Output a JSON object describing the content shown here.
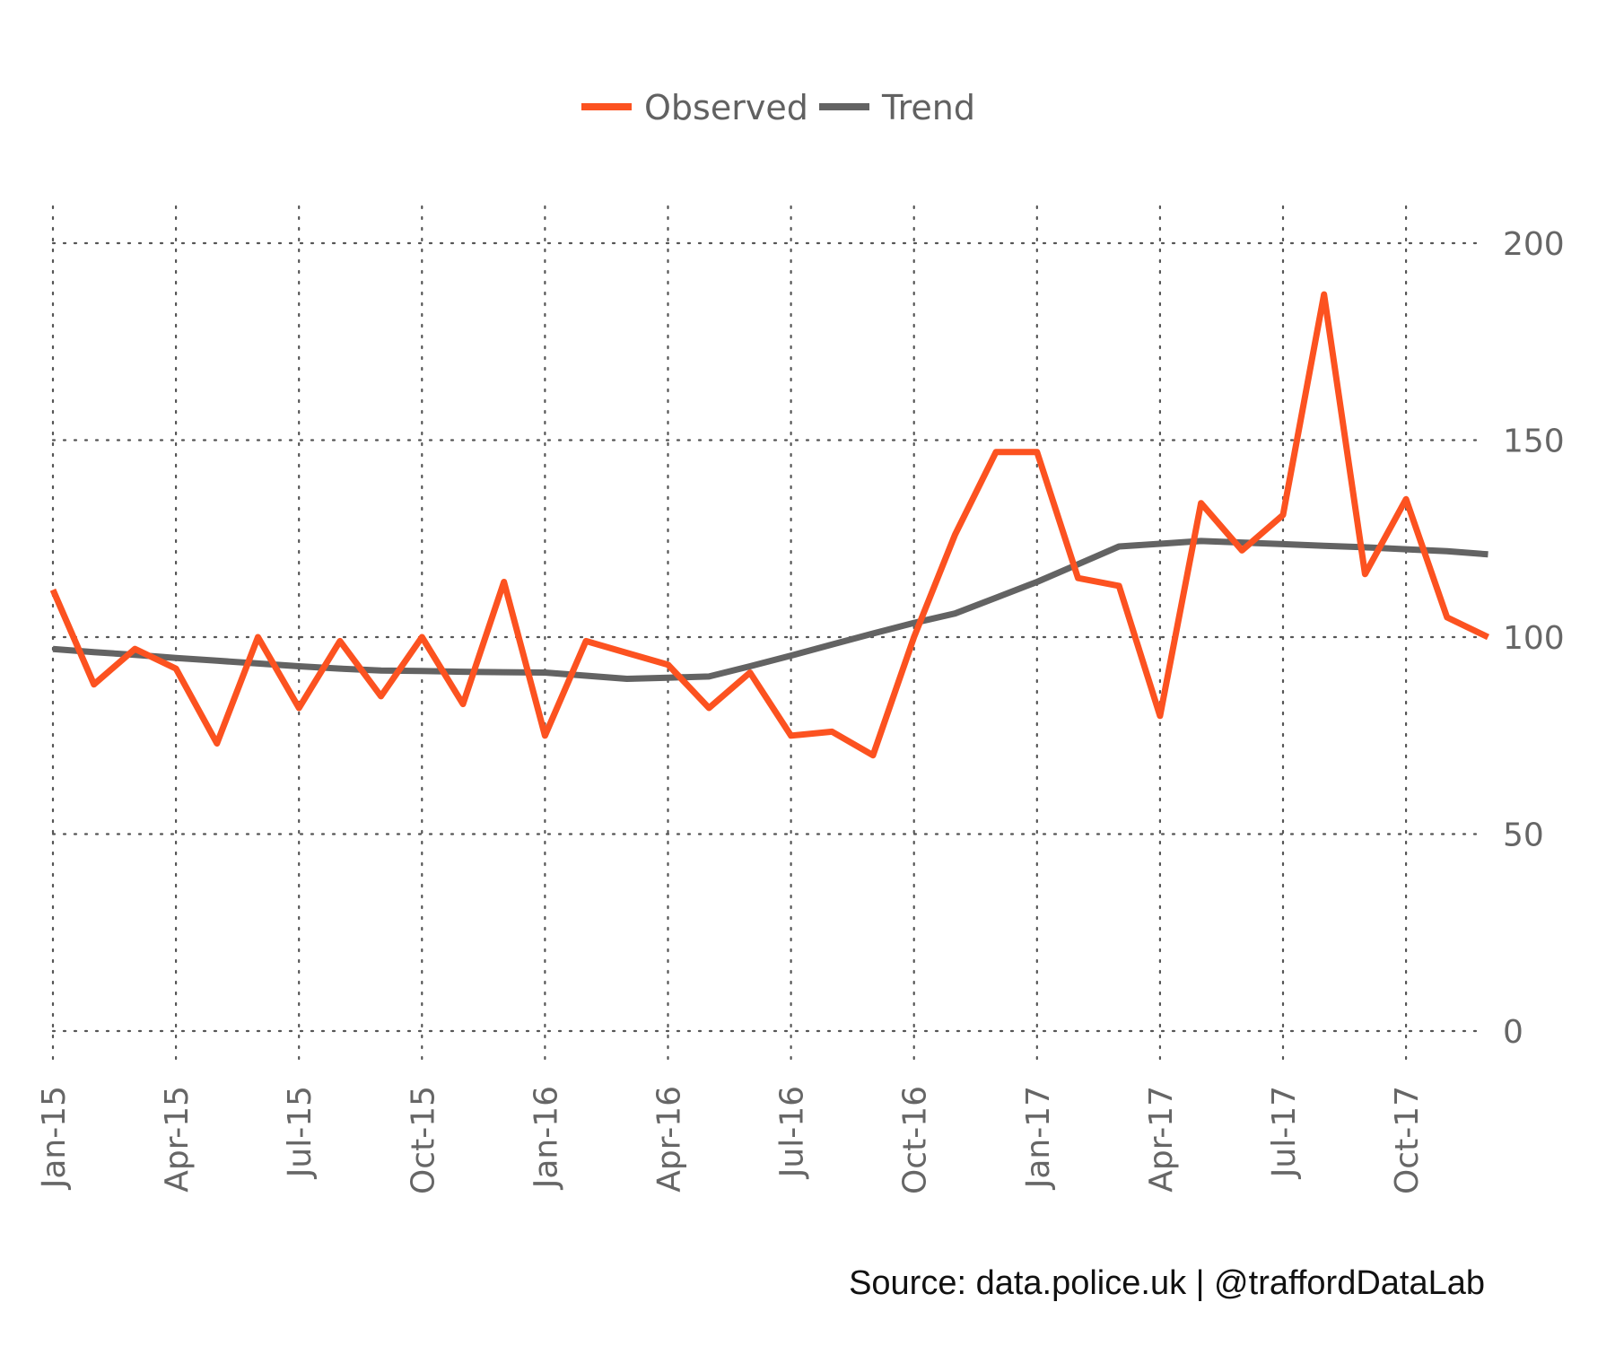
{
  "chart_data": {
    "type": "line",
    "title": "",
    "xlabel": "",
    "ylabel": "",
    "ylim": [
      0,
      200
    ],
    "yticks": [
      0,
      50,
      100,
      150,
      200
    ],
    "xticks": [
      "Jan-15",
      "Apr-15",
      "Jul-15",
      "Oct-15",
      "Jan-16",
      "Apr-16",
      "Jul-16",
      "Oct-16",
      "Jan-17",
      "Apr-17",
      "Jul-17",
      "Oct-17"
    ],
    "x": [
      "Jan-15",
      "Feb-15",
      "Mar-15",
      "Apr-15",
      "May-15",
      "Jun-15",
      "Jul-15",
      "Aug-15",
      "Sep-15",
      "Oct-15",
      "Nov-15",
      "Dec-15",
      "Jan-16",
      "Feb-16",
      "Mar-16",
      "Apr-16",
      "May-16",
      "Jun-16",
      "Jul-16",
      "Aug-16",
      "Sep-16",
      "Oct-16",
      "Nov-16",
      "Dec-16",
      "Jan-17",
      "Feb-17",
      "Mar-17",
      "Apr-17",
      "May-17",
      "Jun-17",
      "Jul-17",
      "Aug-17",
      "Sep-17",
      "Oct-17",
      "Nov-17",
      "Dec-17"
    ],
    "grid": true,
    "legend_position": "top-center",
    "series": [
      {
        "name": "Observed",
        "color": "#fc5220",
        "values": [
          112,
          88,
          97,
          92,
          73,
          100,
          82,
          99,
          85,
          100,
          83,
          114,
          75,
          99,
          96,
          93,
          82,
          91,
          75,
          76,
          70,
          100,
          126,
          147,
          147,
          115,
          113,
          80,
          134,
          122,
          131,
          187,
          116,
          135,
          105,
          100
        ]
      },
      {
        "name": "Trend",
        "color": "#636363",
        "values": [
          97,
          96.2,
          95.5,
          94.7,
          94,
          93.3,
          92.6,
          92,
          91.5,
          91.4,
          91.2,
          91.1,
          91,
          90.2,
          89.4,
          89.7,
          90,
          92.6,
          95.3,
          98.1,
          100.9,
          103.6,
          106,
          110,
          114,
          118.5,
          123,
          123.7,
          124.4,
          124,
          123.6,
          123.2,
          122.8,
          122.3,
          121.8,
          121
        ]
      }
    ]
  },
  "caption": "Source: data.police.uk  |  @traffordDataLab"
}
